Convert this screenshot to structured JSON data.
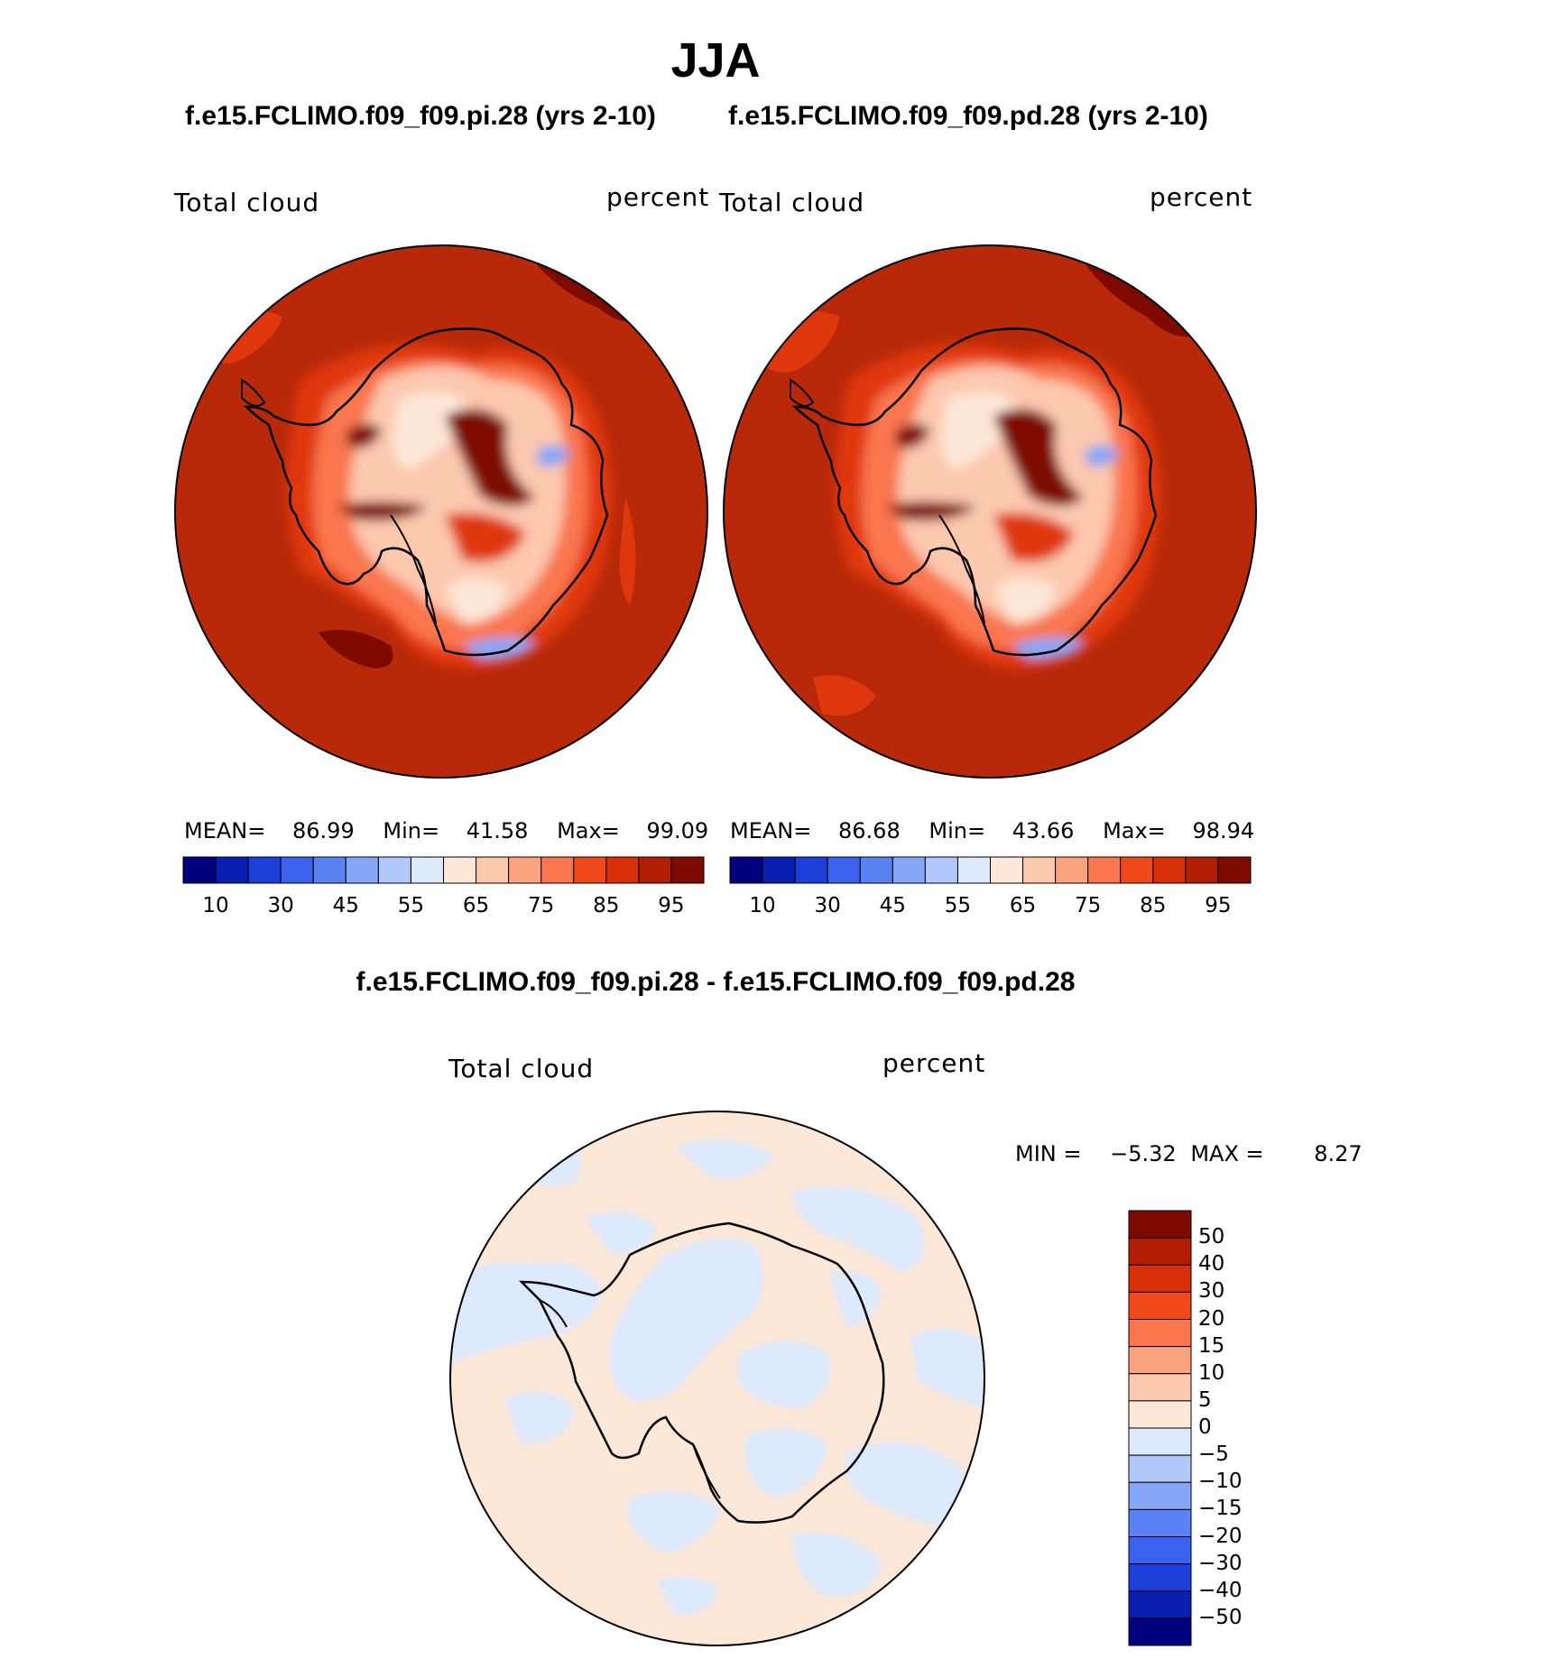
{
  "main_title": "JJA",
  "panels": [
    {
      "case_title": "f.e15.FCLIMO.f09_f09.pi.28 (yrs 2-10)",
      "variable": "Total cloud",
      "units": "percent",
      "stats": {
        "mean_label": "MEAN=",
        "mean": "86.99",
        "min_label": "Min=",
        "min": "41.58",
        "max_label": "Max=",
        "max": "99.09"
      }
    },
    {
      "case_title": "f.e15.FCLIMO.f09_f09.pd.28 (yrs 2-10)",
      "variable": "Total cloud",
      "units": "percent",
      "stats": {
        "mean_label": "MEAN=",
        "mean": "86.68",
        "min_label": "Min=",
        "min": "43.66",
        "max_label": "Max=",
        "max": "98.94"
      }
    }
  ],
  "colorbar": {
    "colors": [
      "#00007f",
      "#0a1fb2",
      "#1c3fdc",
      "#3a62ee",
      "#5b82f4",
      "#86a6f8",
      "#b2c8fb",
      "#dde9fd",
      "#fde7d7",
      "#fcc8ae",
      "#fba27f",
      "#f9764f",
      "#f04a1c",
      "#d83008",
      "#b11e04",
      "#7e0a00"
    ],
    "tick_labels": [
      "10",
      "30",
      "45",
      "55",
      "65",
      "75",
      "85",
      "95"
    ]
  },
  "difference": {
    "title": "f.e15.FCLIMO.f09_f09.pi.28 - f.e15.FCLIMO.f09_f09.pd.28",
    "variable": "Total cloud",
    "units": "percent",
    "min_label": "MIN =",
    "min": "−5.32",
    "max_label": "MAX =",
    "max": "8.27",
    "colors_top_to_bottom": [
      "#7e0a00",
      "#b11e04",
      "#d83008",
      "#f04a1c",
      "#f9764f",
      "#fba27f",
      "#fcc8ae",
      "#fde7d7",
      "#dde9fd",
      "#b2c8fb",
      "#86a6f8",
      "#5b82f4",
      "#3a62ee",
      "#1c3fdc",
      "#0a1fb2",
      "#00007f"
    ],
    "tick_labels": [
      "50",
      "40",
      "30",
      "20",
      "15",
      "10",
      "5",
      "0",
      "−5",
      "−10",
      "−15",
      "−20",
      "−30",
      "−40",
      "−50"
    ]
  },
  "map_colors": {
    "ocean": "#b8290a",
    "dark": "#7e0a00",
    "mid": "#e0380d",
    "light": "#f9764f",
    "pale": "#fcc8ae",
    "cream": "#fde7d7",
    "blue": "#86a6f8",
    "diff_pos": "#fde7d7",
    "diff_neg": "#dde9fd"
  }
}
